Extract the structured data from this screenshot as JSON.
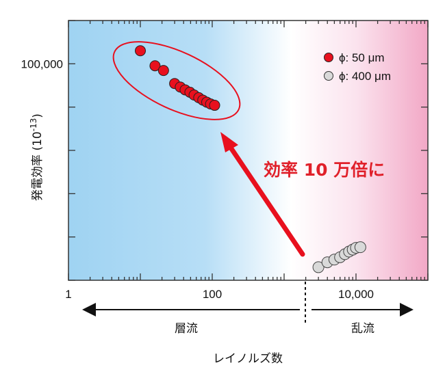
{
  "chart_data": {
    "type": "scatter",
    "x_scale": "log",
    "y_scale": "log",
    "xlim": [
      1,
      100000
    ],
    "ylim": [
      1,
      1000000
    ],
    "xlabel": "レイノルズ数",
    "ylabel": "発電効率 (10-13)",
    "ylabel_main": "発電効率 (10",
    "ylabel_sup": "-13",
    "ylabel_close": ")",
    "x_ticks": [
      {
        "value": 1,
        "label": "1"
      },
      {
        "value": 100,
        "label": "100"
      },
      {
        "value": 10000,
        "label": "10,000"
      }
    ],
    "y_tick_label": {
      "value": 100000,
      "label": "100,000"
    },
    "grid": false,
    "legend_position": "top-right",
    "series": [
      {
        "name": "ϕ: 50 μm",
        "color": "#e8101e",
        "points": [
          {
            "x": 10,
            "y": 200000
          },
          {
            "x": 16,
            "y": 90000
          },
          {
            "x": 21,
            "y": 70000
          },
          {
            "x": 30,
            "y": 35000
          },
          {
            "x": 36,
            "y": 29000
          },
          {
            "x": 42,
            "y": 25000
          },
          {
            "x": 49,
            "y": 22000
          },
          {
            "x": 56,
            "y": 19000
          },
          {
            "x": 65,
            "y": 16500
          },
          {
            "x": 74,
            "y": 14500
          },
          {
            "x": 84,
            "y": 13000
          },
          {
            "x": 95,
            "y": 11800
          },
          {
            "x": 108,
            "y": 11000
          }
        ]
      },
      {
        "name": "ϕ: 400 μm",
        "color": "#d9d9d9",
        "points": [
          {
            "x": 3000,
            "y": 2.0
          },
          {
            "x": 4000,
            "y": 2.6
          },
          {
            "x": 5000,
            "y": 3.0
          },
          {
            "x": 6000,
            "y": 3.4
          },
          {
            "x": 7000,
            "y": 4.0
          },
          {
            "x": 8000,
            "y": 4.6
          },
          {
            "x": 9000,
            "y": 5.1
          },
          {
            "x": 10000,
            "y": 5.6
          },
          {
            "x": 11500,
            "y": 5.8
          }
        ]
      }
    ],
    "annotation": "効率 10 万倍に",
    "regions": [
      {
        "label": "層流",
        "color": "#9fd3f2",
        "x_range": [
          1,
          2300
        ]
      },
      {
        "label": "乱流",
        "color": "#f2a8c6",
        "x_range": [
          2300,
          100000
        ]
      }
    ],
    "regime_boundary_x": 2300
  }
}
